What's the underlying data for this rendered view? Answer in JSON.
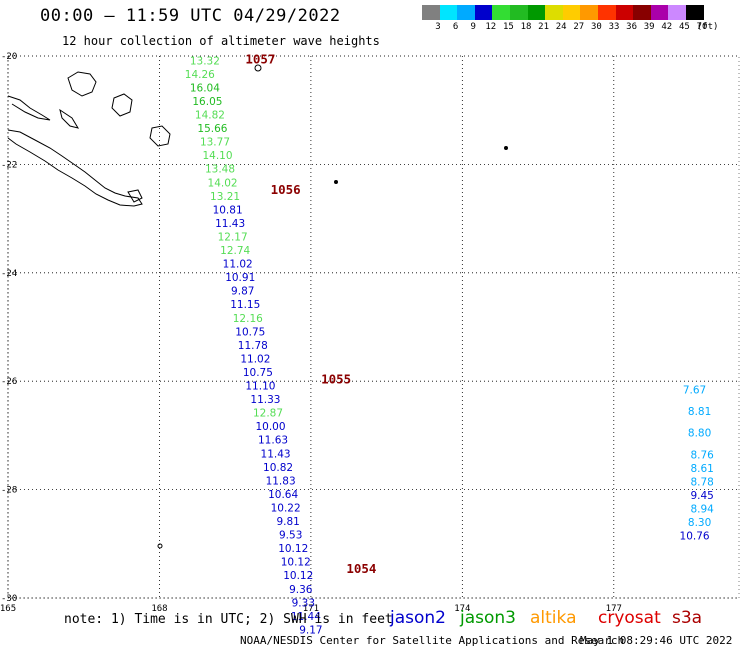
{
  "header": {
    "title": "00:00 – 11:59 UTC 04/29/2022",
    "subtitle": "12 hour collection of altimeter wave heights"
  },
  "colorbar": {
    "labels": [
      "3",
      "6",
      "9",
      "12",
      "15",
      "18",
      "21",
      "24",
      "27",
      "30",
      "33",
      "36",
      "39",
      "42",
      "45",
      "70"
    ],
    "unit": "(ft)",
    "colors": [
      "#808080",
      "#00e5ff",
      "#00aaff",
      "#0000cc",
      "#33dd33",
      "#22bb22",
      "#009900",
      "#dddd00",
      "#ffcc00",
      "#ff9900",
      "#ff3300",
      "#cc0000",
      "#880000",
      "#aa00aa",
      "#cc88ff",
      "#000000"
    ]
  },
  "footer": {
    "note": "note: 1) Time is in UTC; 2) SWH is in feet",
    "credit": "NOAA/NESDIS Center for Satellite Applications and Research",
    "timestamp": "May  1 08:29:46 UTC 2022"
  },
  "legend": [
    {
      "name": "jason2",
      "color": "#0000cc"
    },
    {
      "name": "jason3",
      "color": "#009900"
    },
    {
      "name": "altika",
      "color": "#ff9900"
    },
    {
      "name": "cryosat",
      "color": "#dd0000"
    },
    {
      "name": "s3a",
      "color": "#aa0000"
    }
  ],
  "chart_data": {
    "type": "scatter",
    "xlim": [
      165,
      179.5
    ],
    "ylim": [
      -30,
      -20
    ],
    "x_ticks": [
      "165",
      "168",
      "171",
      "174",
      "177"
    ],
    "x_tick_values": [
      165,
      168,
      171,
      174,
      177
    ],
    "y_ticks": [
      "-20",
      "-22",
      "-24",
      "-26",
      "-28",
      "-30"
    ],
    "y_tick_values": [
      -20,
      -22,
      -24,
      -26,
      -28,
      -30
    ],
    "grid": "dotted",
    "time_markers": [
      {
        "label": "1057",
        "lon": 170.0,
        "lat": -20.05
      },
      {
        "label": "1056",
        "lon": 170.5,
        "lat": -22.45
      },
      {
        "label": "1055",
        "lon": 171.5,
        "lat": -25.95
      },
      {
        "label": "1054",
        "lon": 172.0,
        "lat": -29.45
      }
    ],
    "points": [
      {
        "v": "13.32",
        "lon": 168.9,
        "lat": -20.08,
        "c": "#55dd55"
      },
      {
        "v": "14.26",
        "lon": 168.8,
        "lat": -20.33,
        "c": "#55dd55"
      },
      {
        "v": "16.04",
        "lon": 168.9,
        "lat": -20.58,
        "c": "#22bb22"
      },
      {
        "v": "16.05",
        "lon": 168.95,
        "lat": -20.83,
        "c": "#22bb22"
      },
      {
        "v": "14.82",
        "lon": 169.0,
        "lat": -21.08,
        "c": "#55dd55"
      },
      {
        "v": "15.66",
        "lon": 169.05,
        "lat": -21.33,
        "c": "#22bb22"
      },
      {
        "v": "13.77",
        "lon": 169.1,
        "lat": -21.58,
        "c": "#55dd55"
      },
      {
        "v": "14.10",
        "lon": 169.15,
        "lat": -21.83,
        "c": "#55dd55"
      },
      {
        "v": "13.48",
        "lon": 169.2,
        "lat": -22.08,
        "c": "#55dd55"
      },
      {
        "v": "14.02",
        "lon": 169.25,
        "lat": -22.33,
        "c": "#55dd55"
      },
      {
        "v": "13.21",
        "lon": 169.3,
        "lat": -22.58,
        "c": "#55dd55"
      },
      {
        "v": "10.81",
        "lon": 169.35,
        "lat": -22.83,
        "c": "#0000cc"
      },
      {
        "v": "11.43",
        "lon": 169.4,
        "lat": -23.08,
        "c": "#0000cc"
      },
      {
        "v": "12.17",
        "lon": 169.45,
        "lat": -23.33,
        "c": "#55dd55"
      },
      {
        "v": "12.74",
        "lon": 169.5,
        "lat": -23.58,
        "c": "#55dd55"
      },
      {
        "v": "11.02",
        "lon": 169.55,
        "lat": -23.83,
        "c": "#0000cc"
      },
      {
        "v": "10.91",
        "lon": 169.6,
        "lat": -24.08,
        "c": "#0000cc"
      },
      {
        "v": "9.87",
        "lon": 169.65,
        "lat": -24.33,
        "c": "#0000cc"
      },
      {
        "v": "11.15",
        "lon": 169.7,
        "lat": -24.58,
        "c": "#0000cc"
      },
      {
        "v": "12.16",
        "lon": 169.75,
        "lat": -24.83,
        "c": "#55dd55"
      },
      {
        "v": "10.75",
        "lon": 169.8,
        "lat": -25.08,
        "c": "#0000cc"
      },
      {
        "v": "11.78",
        "lon": 169.85,
        "lat": -25.33,
        "c": "#0000cc"
      },
      {
        "v": "11.02",
        "lon": 169.9,
        "lat": -25.58,
        "c": "#0000cc"
      },
      {
        "v": "10.75",
        "lon": 169.95,
        "lat": -25.83,
        "c": "#0000cc"
      },
      {
        "v": "11.10",
        "lon": 170.0,
        "lat": -26.08,
        "c": "#0000cc"
      },
      {
        "v": "11.33",
        "lon": 170.1,
        "lat": -26.33,
        "c": "#0000cc"
      },
      {
        "v": "12.87",
        "lon": 170.15,
        "lat": -26.58,
        "c": "#55dd55"
      },
      {
        "v": "10.00",
        "lon": 170.2,
        "lat": -26.83,
        "c": "#0000cc"
      },
      {
        "v": "11.63",
        "lon": 170.25,
        "lat": -27.08,
        "c": "#0000cc"
      },
      {
        "v": "11.43",
        "lon": 170.3,
        "lat": -27.33,
        "c": "#0000cc"
      },
      {
        "v": "10.82",
        "lon": 170.35,
        "lat": -27.58,
        "c": "#0000cc"
      },
      {
        "v": "11.83",
        "lon": 170.4,
        "lat": -27.83,
        "c": "#0000cc"
      },
      {
        "v": "10.64",
        "lon": 170.45,
        "lat": -28.08,
        "c": "#0000cc"
      },
      {
        "v": "10.22",
        "lon": 170.5,
        "lat": -28.33,
        "c": "#0000cc"
      },
      {
        "v": "9.81",
        "lon": 170.55,
        "lat": -28.58,
        "c": "#0000cc"
      },
      {
        "v": "9.53",
        "lon": 170.6,
        "lat": -28.83,
        "c": "#0000cc"
      },
      {
        "v": "10.12",
        "lon": 170.65,
        "lat": -29.08,
        "c": "#0000cc"
      },
      {
        "v": "10.12",
        "lon": 170.7,
        "lat": -29.33,
        "c": "#0000cc"
      },
      {
        "v": "10.12",
        "lon": 170.75,
        "lat": -29.58,
        "c": "#0000cc"
      },
      {
        "v": "9.36",
        "lon": 170.8,
        "lat": -29.83,
        "c": "#0000cc"
      },
      {
        "v": "9.33",
        "lon": 170.85,
        "lat": -30.08,
        "c": "#0000cc"
      },
      {
        "v": "11.44",
        "lon": 170.9,
        "lat": -30.33,
        "c": "#0000cc"
      },
      {
        "v": "9.17",
        "lon": 171.0,
        "lat": -30.58,
        "c": "#0000cc"
      },
      {
        "v": "7.67",
        "lon": 178.6,
        "lat": -26.15,
        "c": "#00aaff"
      },
      {
        "v": "8.81",
        "lon": 178.7,
        "lat": -26.55,
        "c": "#00aaff"
      },
      {
        "v": "8.80",
        "lon": 178.7,
        "lat": -26.95,
        "c": "#00aaff"
      },
      {
        "v": "8.76",
        "lon": 178.75,
        "lat": -27.35,
        "c": "#00aaff"
      },
      {
        "v": "8.61",
        "lon": 178.75,
        "lat": -27.6,
        "c": "#00aaff"
      },
      {
        "v": "8.78",
        "lon": 178.75,
        "lat": -27.85,
        "c": "#00aaff"
      },
      {
        "v": "9.45",
        "lon": 178.75,
        "lat": -28.1,
        "c": "#0000cc"
      },
      {
        "v": "8.94",
        "lon": 178.75,
        "lat": -28.35,
        "c": "#00aaff"
      },
      {
        "v": "8.30",
        "lon": 178.7,
        "lat": -28.6,
        "c": "#00aaff"
      },
      {
        "v": "10.76",
        "lon": 178.6,
        "lat": -28.85,
        "c": "#0000cc"
      }
    ]
  }
}
